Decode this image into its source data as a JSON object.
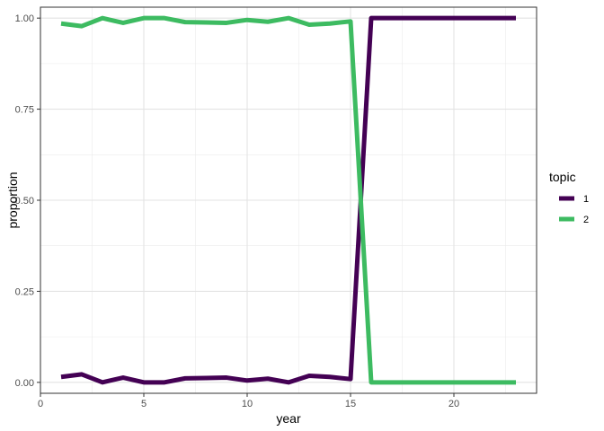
{
  "chart_data": {
    "type": "line",
    "title": "",
    "xlabel": "year",
    "ylabel": "proportion",
    "xlim": [
      0,
      24
    ],
    "ylim": [
      -0.03,
      1.03
    ],
    "x_ticks": [
      0,
      5,
      10,
      15,
      20
    ],
    "x_tick_labels": [
      "0",
      "5",
      "10",
      "15",
      "20"
    ],
    "y_ticks": [
      0,
      0.25,
      0.5,
      0.75,
      1
    ],
    "y_tick_labels": [
      "0.00",
      "0.25",
      "0.50",
      "0.75",
      "1.00"
    ],
    "grid": true,
    "legend": {
      "title": "topic",
      "position": "right"
    },
    "x": [
      1,
      2,
      3,
      4,
      5,
      6,
      7,
      8,
      9,
      10,
      11,
      12,
      13,
      14,
      15,
      16,
      17,
      18,
      19,
      20,
      21,
      22,
      23
    ],
    "series": [
      {
        "name": "1",
        "color": "#440154",
        "values": [
          0.015,
          0.022,
          0.0,
          0.013,
          0.0,
          0.0,
          0.011,
          0.012,
          0.013,
          0.005,
          0.01,
          0.0,
          0.018,
          0.015,
          0.009,
          1.0,
          1.0,
          1.0,
          1.0,
          1.0,
          1.0,
          1.0,
          1.0
        ]
      },
      {
        "name": "2",
        "color": "#3dbb61",
        "values": [
          0.985,
          0.978,
          1.0,
          0.987,
          1.0,
          1.0,
          0.989,
          0.988,
          0.987,
          0.995,
          0.99,
          1.0,
          0.982,
          0.985,
          0.991,
          0.0,
          0.0,
          0.0,
          0.0,
          0.0,
          0.0,
          0.0,
          0.0
        ]
      }
    ]
  }
}
